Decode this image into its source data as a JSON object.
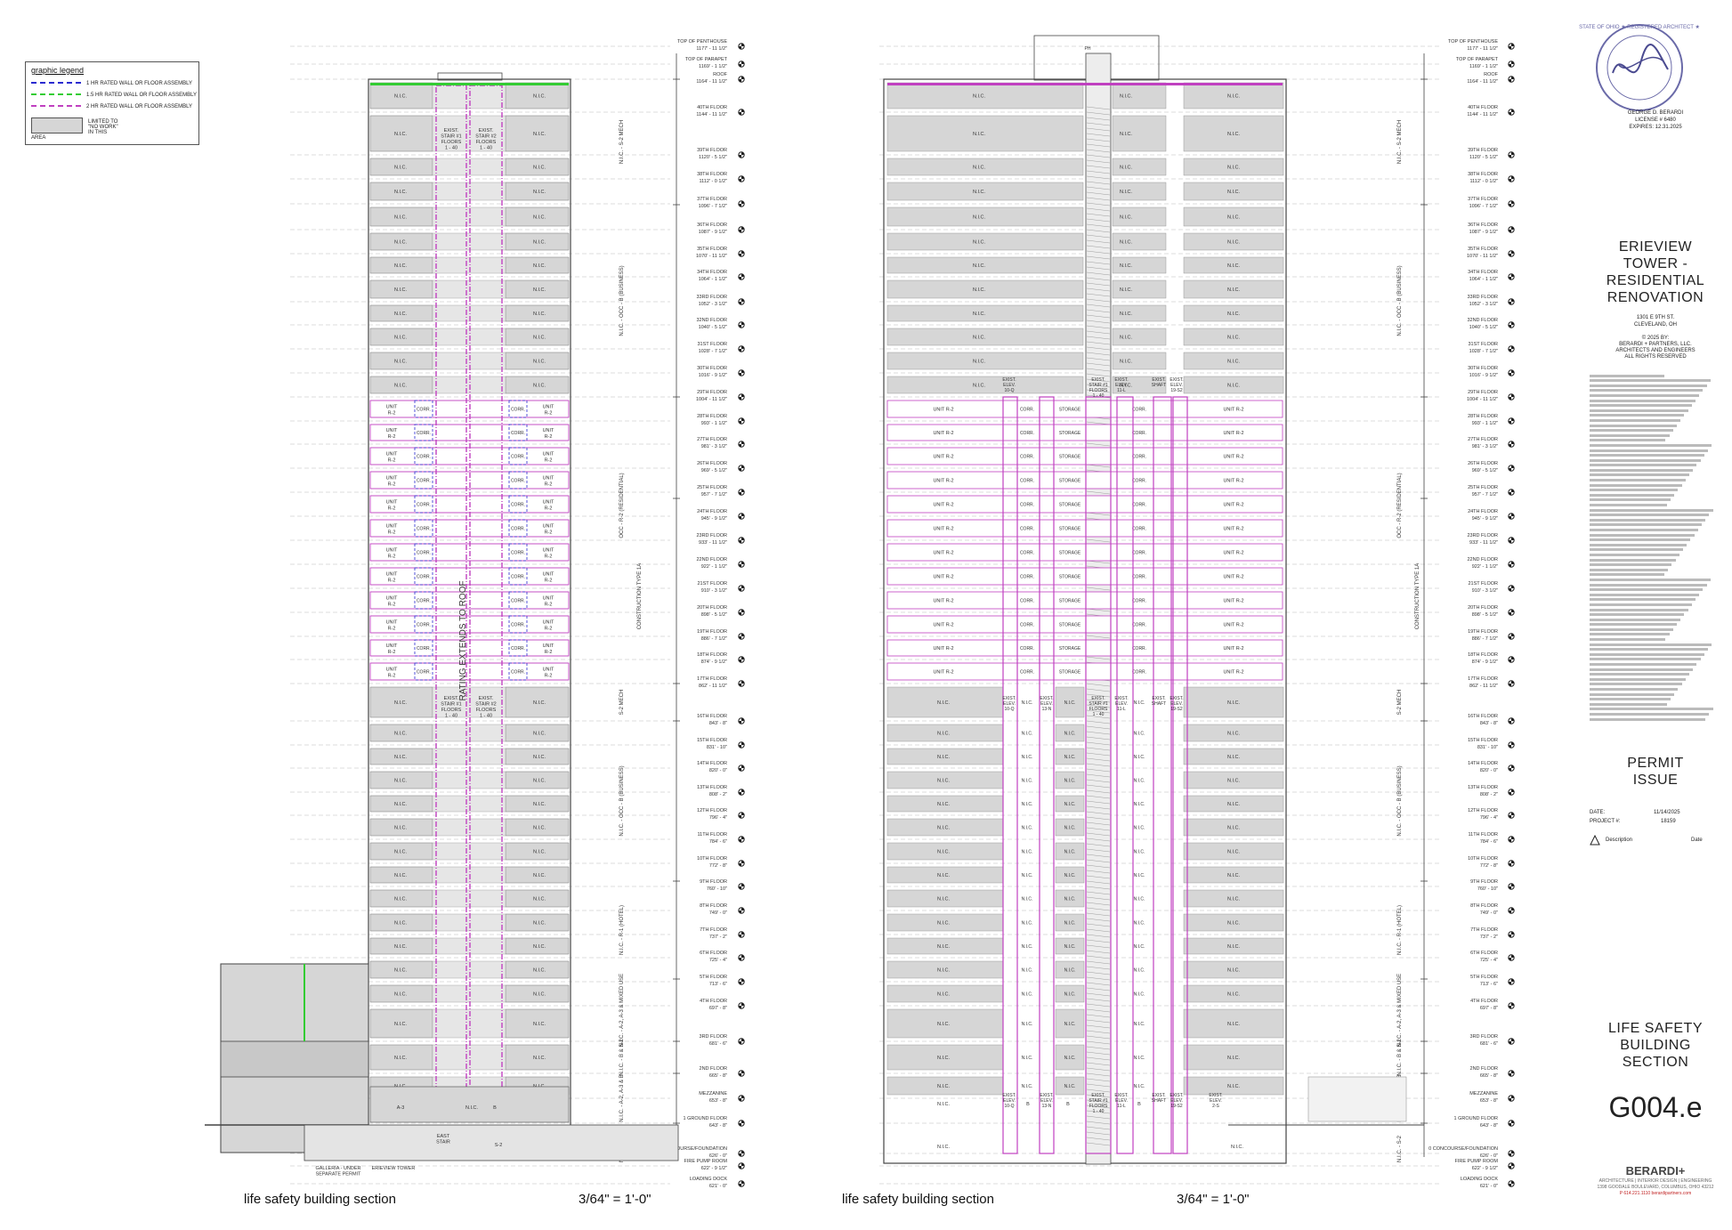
{
  "legend": {
    "title": "graphic legend",
    "items": [
      {
        "label": "1 HR RATED WALL OR FLOOR ASSEMBLY",
        "color": "#2a2ad0",
        "style": "dash-dot"
      },
      {
        "label": "1.5 HR RATED WALL OR FLOOR ASSEMBLY",
        "color": "#33cc33",
        "style": "dash"
      },
      {
        "label": "2 HR RATED WALL OR FLOOR ASSEMBLY",
        "color": "#c040c0",
        "style": "dash-dot"
      },
      {
        "label": "LIMITED TO \"NO WORK\" IN THIS AREA",
        "color": "#d6d6d6",
        "style": "box"
      }
    ]
  },
  "levels": [
    {
      "name": "TOP OF PENTHOUSE",
      "elev": "1177' - 11 1/2\""
    },
    {
      "name": "TOP OF PARAPET",
      "elev": "1169' - 1 1/2\""
    },
    {
      "name": "ROOF",
      "elev": "1164' - 11 1/2\""
    },
    {
      "name": "40TH FLOOR",
      "elev": "1144' - 11 1/2\""
    },
    {
      "name": "39TH FLOOR",
      "elev": "1120' - 5 1/2\""
    },
    {
      "name": "38TH FLOOR",
      "elev": "1112' - 0 1/2\""
    },
    {
      "name": "37TH FLOOR",
      "elev": "1096' - 7 1/2\""
    },
    {
      "name": "36TH FLOOR",
      "elev": "1087' - 9 1/2\""
    },
    {
      "name": "35TH FLOOR",
      "elev": "1070' - 11 1/2\""
    },
    {
      "name": "34TH FLOOR",
      "elev": "1064' - 1 1/2\""
    },
    {
      "name": "33RD FLOOR",
      "elev": "1052' - 3 1/2\""
    },
    {
      "name": "32ND FLOOR",
      "elev": "1040' - 5 1/2\""
    },
    {
      "name": "31ST FLOOR",
      "elev": "1028' - 7 1/2\""
    },
    {
      "name": "30TH FLOOR",
      "elev": "1016' - 9 1/2\""
    },
    {
      "name": "29TH FLOOR",
      "elev": "1004' - 11 1/2\""
    },
    {
      "name": "28TH FLOOR",
      "elev": "993' - 1 1/2\""
    },
    {
      "name": "27TH FLOOR",
      "elev": "981' - 3 1/2\""
    },
    {
      "name": "26TH FLOOR",
      "elev": "969' - 5 1/2\""
    },
    {
      "name": "25TH FLOOR",
      "elev": "957' - 7 1/2\""
    },
    {
      "name": "24TH FLOOR",
      "elev": "945' - 9 1/2\""
    },
    {
      "name": "23RD FLOOR",
      "elev": "933' - 11 1/2\""
    },
    {
      "name": "22ND FLOOR",
      "elev": "922' - 1 1/2\""
    },
    {
      "name": "21ST FLOOR",
      "elev": "910' - 3 1/2\""
    },
    {
      "name": "20TH FLOOR",
      "elev": "898' - 5 1/2\""
    },
    {
      "name": "19TH FLOOR",
      "elev": "886' - 7 1/2\""
    },
    {
      "name": "18TH FLOOR",
      "elev": "874' - 9 1/2\""
    },
    {
      "name": "17TH FLOOR",
      "elev": "862' - 11 1/2\""
    },
    {
      "name": "16TH FLOOR",
      "elev": "843' - 8\""
    },
    {
      "name": "15TH FLOOR",
      "elev": "831' - 10\""
    },
    {
      "name": "14TH FLOOR",
      "elev": "820' - 0\""
    },
    {
      "name": "13TH FLOOR",
      "elev": "808' - 2\""
    },
    {
      "name": "12TH FLOOR",
      "elev": "796' - 4\""
    },
    {
      "name": "11TH FLOOR",
      "elev": "784' - 6\""
    },
    {
      "name": "10TH FLOOR",
      "elev": "772' - 8\""
    },
    {
      "name": "9TH FLOOR",
      "elev": "760' - 10\""
    },
    {
      "name": "8TH FLOOR",
      "elev": "749' - 0\""
    },
    {
      "name": "7TH FLOOR",
      "elev": "737' - 2\""
    },
    {
      "name": "6TH FLOOR",
      "elev": "725' - 4\""
    },
    {
      "name": "5TH FLOOR",
      "elev": "713' - 6\""
    },
    {
      "name": "4TH FLOOR",
      "elev": "697' - 8\""
    },
    {
      "name": "3RD FLOOR",
      "elev": "681' - 6\""
    },
    {
      "name": "2ND FLOOR",
      "elev": "665' - 8\""
    },
    {
      "name": "MEZZANINE",
      "elev": "653' - 8\""
    },
    {
      "name": "1 GROUND FLOOR",
      "elev": "643' - 8\""
    },
    {
      "name": "0 CONCOURSE/FOUNDATION",
      "elev": "626' - 0\""
    },
    {
      "name": "FIRE PUMP ROOM",
      "elev": "622' - 9 1/2\""
    },
    {
      "name": "LOADING DOCK",
      "elev": "621' - 0\""
    }
  ],
  "bands": [
    "N.I.C. - S-2 MECH",
    "N.I.C. - OCC - B (BUSINESS)",
    "OCC - R-2 (RESIDENTIAL)",
    "CONSTRUCTION TYPE 1A",
    "S-2 MECH",
    "N.I.C. - OCC - B (BUSINESS)",
    "N.I.C. - R-1 (HOTEL)",
    "N.I.C. - A-2, A-3 & MIXED USE",
    "N.I.C. - B & S-2",
    "N.I.C. - A-2, A-3 & B",
    "N.I.C. - S-2"
  ],
  "section_a": {
    "nic": "N.I.C.",
    "corr": "CORR.",
    "unit": "UNIT",
    "unit_type": "R-2",
    "stair1": [
      "EXIST.",
      "STAIR #1",
      "FLOORS",
      "1 - 40"
    ],
    "stair2": [
      "EXIST.",
      "STAIR #2",
      "FLOORS",
      "1 - 40"
    ],
    "rating": "RATING EXTENDS TO ROOF",
    "a3": "A-3",
    "b": "B",
    "s2": "S-2",
    "east_stair": [
      "EAST",
      "STAIR"
    ],
    "galleria": [
      "GALLERIA - UNDER",
      "SEPARATE PERMIT"
    ],
    "erieview": "ERIEVIEW TOWER"
  },
  "section_b": {
    "nic": "N.I.C.",
    "corr": "CORR.",
    "storage": "STORAGE",
    "unit": "UNIT R-2",
    "b": "B",
    "stair": [
      "EXIST.",
      "STAIR #1",
      "FLOORS",
      "1 - 40"
    ],
    "elev_a": [
      "EXIST.",
      "ELEV.",
      "10-Q"
    ],
    "elev_b": [
      "EXIST.",
      "ELEV.",
      "11-L"
    ],
    "elev_c": [
      "EXIST.",
      "ELEV.",
      "13-N"
    ],
    "elev_d": [
      "EXIST.",
      "ELEV.",
      "19-S2"
    ],
    "shaft": [
      "EXIST.",
      "SHAFT"
    ],
    "elev_e": [
      "EXIST.",
      "ELEV.",
      "2-S"
    ],
    "ph": "PH",
    "top_label": "PH"
  },
  "captions": {
    "left_title": "life safety building section",
    "left_scale": "3/64\" = 1'-0\"",
    "right_title": "life safety building section",
    "right_scale": "3/64\" = 1'-0\""
  },
  "title_block": {
    "seal_name": "GEORGE D. BERARDI",
    "seal_license": "LICENSE # 6480",
    "seal_expires": "EXPIRES: 12.31.2025",
    "seal_ring": "STATE OF OHIO ★ REGISTERED ARCHITECT ★",
    "project_title": [
      "ERIEVIEW",
      "TOWER -",
      "RESIDENTIAL",
      "RENOVATION"
    ],
    "address": [
      "1301 E 9TH ST.",
      "CLEVELAND, OH"
    ],
    "copyright": [
      "© 2025 BY:",
      "BERARDI + PARTNERS, LLC.",
      "ARCHITECTS AND ENGINEERS",
      "ALL RIGHTS RESERVED"
    ],
    "issue": [
      "PERMIT",
      "ISSUE"
    ],
    "date_label": "DATE:",
    "date_value": "11/14/2025",
    "project_label": "PROJECT #:",
    "project_value": "18159",
    "rev_desc": "Description",
    "rev_date": "Date",
    "sheet_title": [
      "LIFE SAFETY",
      "BUILDING",
      "SECTION"
    ],
    "sheet_number": "G004.e",
    "firm": "BERARDI+",
    "firm_tag": "ARCHITECTURE | INTERIOR DESIGN | ENGINEERING",
    "firm_address": "1398 GOODALE BOULEVARD, COLUMBUS, OHIO 43212",
    "firm_contact": "P 614.221.1110 berardipartners.com"
  },
  "colors": {
    "rating_2hr": "#c040c0",
    "rating_1hr": "#2a2ad0",
    "rating_15hr": "#33cc33",
    "nic_fill": "#d6d6d6",
    "line": "#444444"
  }
}
